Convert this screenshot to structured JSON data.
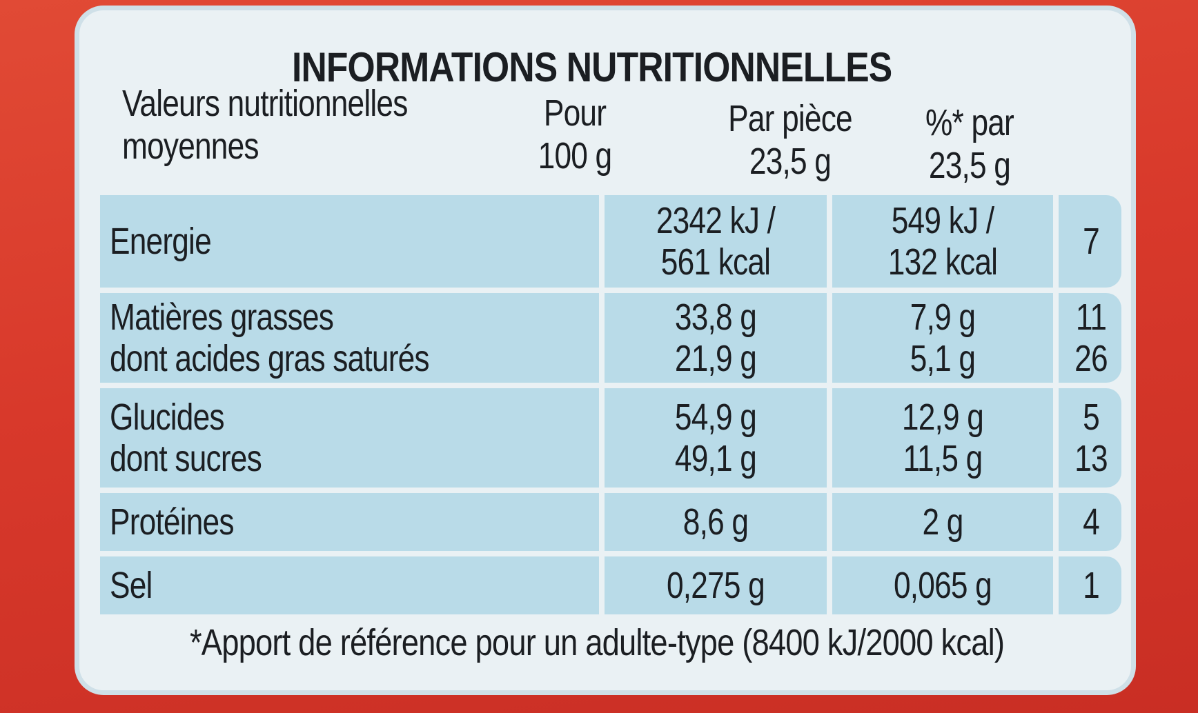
{
  "title": "INFORMATIONS NUTRITIONNELLES",
  "headers": {
    "col0_line1": "Valeurs nutritionnelles",
    "col0_line2": "moyennes",
    "col1_line1": "Pour",
    "col1_line2": "100 g",
    "col2_line1": "Par pièce",
    "col2_line2": "23,5 g",
    "col3_line1": "%* par",
    "col3_line2": "23,5 g"
  },
  "rows": [
    {
      "label_lines": [
        "Energie"
      ],
      "per100_lines": [
        "2342 kJ /",
        "561 kcal"
      ],
      "perpiece_lines": [
        "549 kJ /",
        "132 kcal"
      ],
      "pct_lines": [
        "7"
      ]
    },
    {
      "label_lines": [
        "Matières grasses",
        "dont acides gras saturés"
      ],
      "per100_lines": [
        "33,8 g",
        "21,9 g"
      ],
      "perpiece_lines": [
        "7,9 g",
        "5,1 g"
      ],
      "pct_lines": [
        "11",
        "26"
      ]
    },
    {
      "label_lines": [
        "Glucides",
        "dont sucres"
      ],
      "per100_lines": [
        "54,9 g",
        "49,1 g"
      ],
      "perpiece_lines": [
        "12,9 g",
        "11,5 g"
      ],
      "pct_lines": [
        "5",
        "13"
      ]
    },
    {
      "label_lines": [
        "Protéines"
      ],
      "per100_lines": [
        "8,6 g"
      ],
      "perpiece_lines": [
        "2 g"
      ],
      "pct_lines": [
        "4"
      ]
    },
    {
      "label_lines": [
        "Sel"
      ],
      "per100_lines": [
        "0,275 g"
      ],
      "perpiece_lines": [
        "0,065 g"
      ],
      "pct_lines": [
        "1"
      ]
    }
  ],
  "footnote": "*Apport de référence pour un adulte-type (8400 kJ/2000 kcal)",
  "colors": {
    "package_red": "#d8392b",
    "panel_background": "#eaf1f4",
    "table_fill": "#b9dbe8",
    "text": "#1b1e22"
  }
}
